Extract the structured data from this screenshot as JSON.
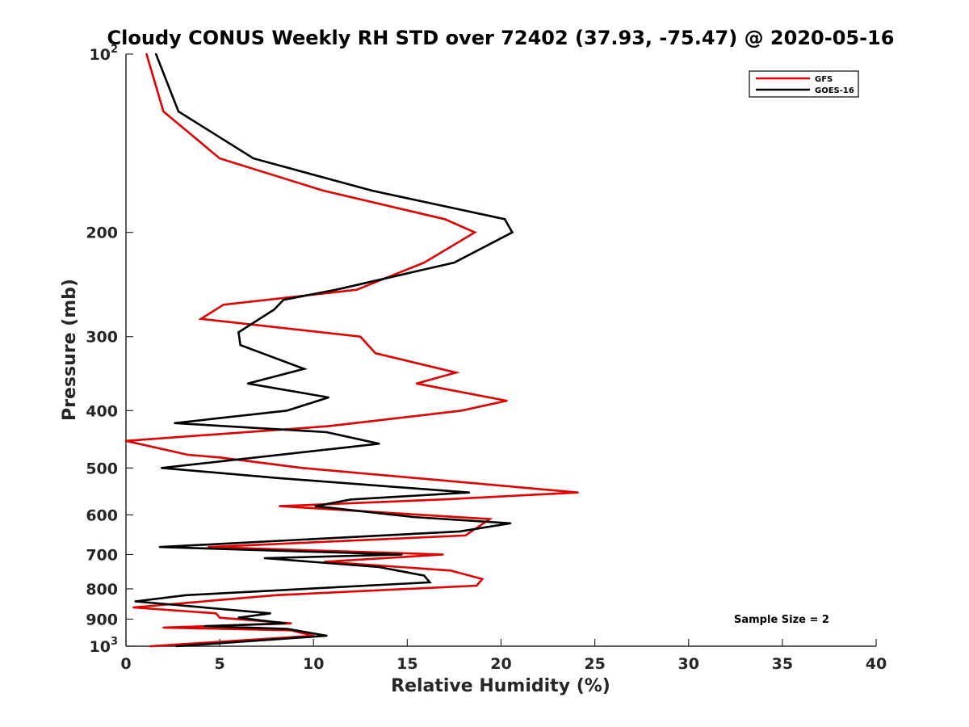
{
  "chart_data": {
    "type": "line",
    "title": "Cloudy CONUS Weekly RH STD over 72402 (37.93, -75.47) @ 2020-05-16",
    "xlabel": "Relative Humidity (%)",
    "ylabel": "Pressure (mb)",
    "xlim": [
      0,
      40
    ],
    "ylim": [
      100,
      1000
    ],
    "yscale": "log",
    "yreversed": true,
    "grid": false,
    "legend_position": "top-right",
    "x_ticks": [
      "0",
      "5",
      "10",
      "15",
      "20",
      "25",
      "30",
      "35",
      "40"
    ],
    "y_ticks": [
      {
        "value": 100,
        "base": "10",
        "exp": "2"
      },
      {
        "value": 200,
        "label": "200"
      },
      {
        "value": 300,
        "label": "300"
      },
      {
        "value": 400,
        "label": "400"
      },
      {
        "value": 500,
        "label": "500"
      },
      {
        "value": 600,
        "label": "600"
      },
      {
        "value": 700,
        "label": "700"
      },
      {
        "value": 800,
        "label": "800"
      },
      {
        "value": 900,
        "label": "900"
      },
      {
        "value": 1000,
        "base": "10",
        "exp": "3"
      }
    ],
    "series": [
      {
        "name": "GFS",
        "color": "#e00000",
        "points": [
          [
            1.1,
            100
          ],
          [
            2.0,
            125
          ],
          [
            5.0,
            150
          ],
          [
            10.5,
            170
          ],
          [
            17.0,
            190
          ],
          [
            18.6,
            200
          ],
          [
            15.9,
            225
          ],
          [
            12.3,
            250
          ],
          [
            5.2,
            265
          ],
          [
            4.0,
            280
          ],
          [
            12.5,
            300
          ],
          [
            13.3,
            320
          ],
          [
            17.6,
            345
          ],
          [
            15.5,
            360
          ],
          [
            20.3,
            385
          ],
          [
            17.9,
            400
          ],
          [
            10.8,
            425
          ],
          [
            0.0,
            450
          ],
          [
            3.3,
            475
          ],
          [
            5.0,
            480
          ],
          [
            9.4,
            500
          ],
          [
            24.1,
            550
          ],
          [
            16.9,
            565
          ],
          [
            8.2,
            580
          ],
          [
            19.4,
            610
          ],
          [
            18.1,
            650
          ],
          [
            4.4,
            680
          ],
          [
            16.9,
            700
          ],
          [
            10.6,
            720
          ],
          [
            17.3,
            745
          ],
          [
            19.0,
            770
          ],
          [
            18.7,
            790
          ],
          [
            8.0,
            820
          ],
          [
            0.4,
            860
          ],
          [
            4.8,
            880
          ],
          [
            5.0,
            895
          ],
          [
            8.8,
            915
          ],
          [
            2.0,
            930
          ],
          [
            8.8,
            940
          ],
          [
            10.0,
            960
          ],
          [
            1.3,
            1000
          ]
        ]
      },
      {
        "name": "GOES-16",
        "color": "#000000",
        "points": [
          [
            1.6,
            100
          ],
          [
            2.8,
            125
          ],
          [
            6.8,
            150
          ],
          [
            13.1,
            170
          ],
          [
            20.2,
            190
          ],
          [
            20.6,
            200
          ],
          [
            17.5,
            225
          ],
          [
            11.2,
            250
          ],
          [
            8.4,
            260
          ],
          [
            7.9,
            270
          ],
          [
            6.0,
            295
          ],
          [
            6.1,
            310
          ],
          [
            9.5,
            340
          ],
          [
            6.5,
            360
          ],
          [
            10.8,
            380
          ],
          [
            8.6,
            400
          ],
          [
            2.6,
            420
          ],
          [
            10.7,
            435
          ],
          [
            13.5,
            455
          ],
          [
            1.9,
            500
          ],
          [
            8.1,
            520
          ],
          [
            18.3,
            550
          ],
          [
            12.0,
            565
          ],
          [
            10.1,
            580
          ],
          [
            15.3,
            605
          ],
          [
            20.5,
            620
          ],
          [
            17.8,
            640
          ],
          [
            1.8,
            680
          ],
          [
            14.7,
            700
          ],
          [
            7.4,
            710
          ],
          [
            13.5,
            735
          ],
          [
            15.9,
            760
          ],
          [
            16.2,
            780
          ],
          [
            3.2,
            820
          ],
          [
            0.5,
            840
          ],
          [
            7.7,
            880
          ],
          [
            6.0,
            895
          ],
          [
            8.5,
            915
          ],
          [
            4.2,
            925
          ],
          [
            8.6,
            935
          ],
          [
            10.7,
            960
          ],
          [
            2.7,
            1000
          ]
        ]
      }
    ],
    "annotation": "Sample Size = 2"
  }
}
